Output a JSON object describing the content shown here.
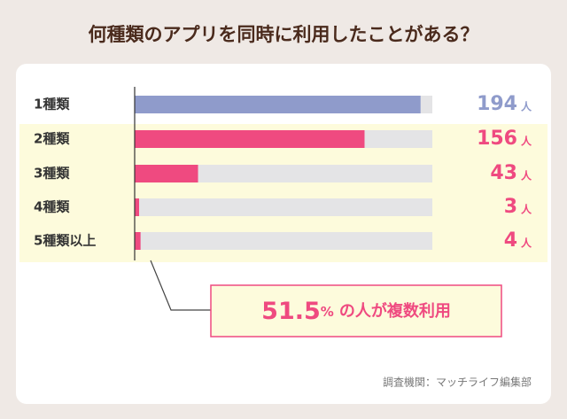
{
  "chart_data": {
    "type": "bar",
    "orientation": "horizontal",
    "title": "何種類のアプリを同時に利用したことがある？",
    "categories": [
      "1種類",
      "2種類",
      "3種類",
      "4種類",
      "5種類以上"
    ],
    "values": [
      194,
      156,
      43,
      3,
      4
    ],
    "unit": "人",
    "colors": [
      "#8f9bcb",
      "#ef4a80",
      "#ef4a80",
      "#ef4a80",
      "#ef4a80"
    ],
    "xlim": [
      0,
      202
    ],
    "annotation": {
      "number": 51.5,
      "unit": "%",
      "text": "の人が複数利用"
    },
    "source": "調査機関：マッチライフ編集部"
  }
}
